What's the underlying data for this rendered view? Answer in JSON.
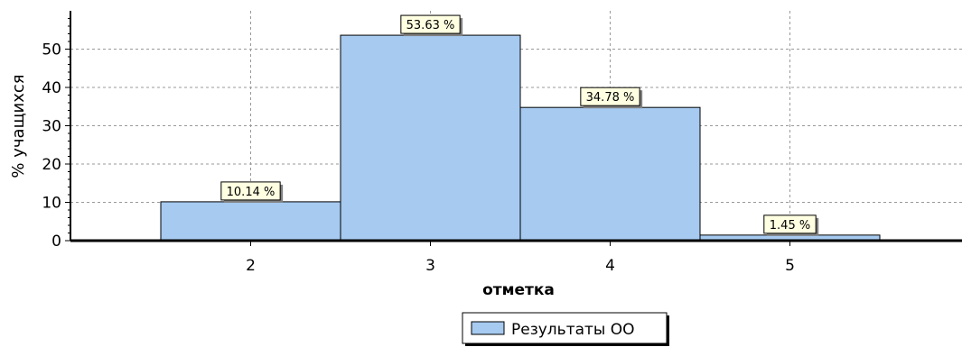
{
  "chart_data": {
    "type": "bar",
    "categories": [
      "2",
      "3",
      "4",
      "5"
    ],
    "series": [
      {
        "name": "Результаты ОО",
        "values": [
          10.14,
          53.63,
          34.78,
          1.45
        ]
      }
    ],
    "data_labels": [
      "10.14 %",
      "53.63 %",
      "34.78 %",
      "1.45 %"
    ],
    "title": "",
    "xlabel": "отметка",
    "ylabel": "% учащихся",
    "ylim": [
      0,
      60
    ],
    "yticks": [
      0,
      10,
      20,
      30,
      40,
      50
    ],
    "grid": true,
    "legend_position": "bottom-center",
    "colors": {
      "bar_fill": "#A6CAF0",
      "bar_stroke": "#000000",
      "label_bg": "#FFFFE1",
      "grid": "#999999"
    }
  }
}
